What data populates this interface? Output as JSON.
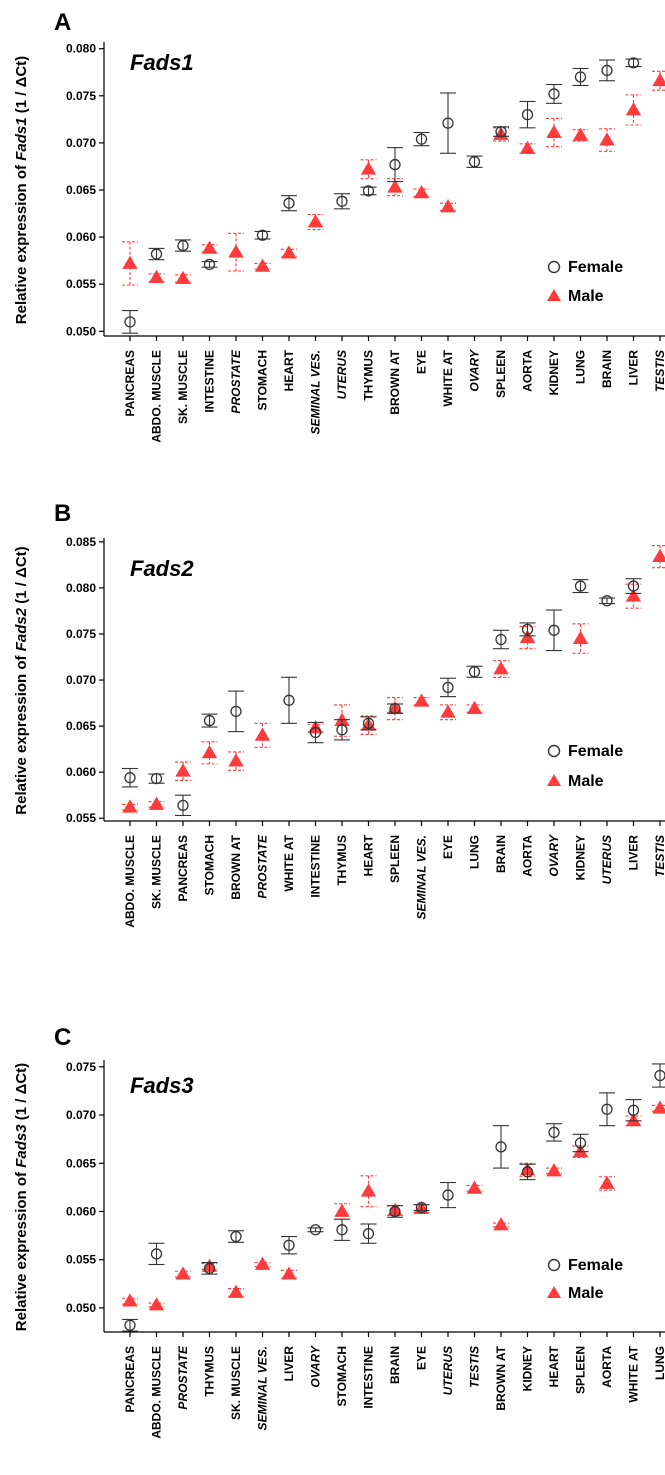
{
  "chart_data": [
    {
      "type": "scatter",
      "panel": "A",
      "title": "Fads1",
      "ylabel_prefix": "Relative expression of ",
      "ylabel_gene": "Fads1",
      "ylabel_suffix": " (1 / ΔCt)",
      "ylim": [
        0.0495,
        0.0805
      ],
      "yticks": [
        "0.050",
        "0.055",
        "0.060",
        "0.065",
        "0.070",
        "0.075",
        "0.080"
      ],
      "ytick_values": [
        0.05,
        0.055,
        0.06,
        0.065,
        0.07,
        0.075,
        0.08
      ],
      "legend": {
        "female": "Female",
        "male": "Male",
        "placement": "lower-right"
      },
      "categories": [
        {
          "label": "PANCREAS",
          "italic": false
        },
        {
          "label": "ABDO. MUSCLE",
          "italic": false
        },
        {
          "label": "SK. MUSCLE",
          "italic": false
        },
        {
          "label": "INTESTINE",
          "italic": false
        },
        {
          "label": "PROSTATE",
          "italic": true
        },
        {
          "label": "STOMACH",
          "italic": false
        },
        {
          "label": "HEART",
          "italic": false
        },
        {
          "label": "SEMINAL VES.",
          "italic": true
        },
        {
          "label": "UTERUS",
          "italic": true
        },
        {
          "label": "THYMUS",
          "italic": false
        },
        {
          "label": "BROWN AT",
          "italic": false
        },
        {
          "label": "EYE",
          "italic": false
        },
        {
          "label": "WHITE AT",
          "italic": false
        },
        {
          "label": "OVARY",
          "italic": true
        },
        {
          "label": "SPLEEN",
          "italic": false
        },
        {
          "label": "AORTA",
          "italic": false
        },
        {
          "label": "KIDNEY",
          "italic": false
        },
        {
          "label": "LUNG",
          "italic": false
        },
        {
          "label": "BRAIN",
          "italic": false
        },
        {
          "label": "LIVER",
          "italic": false
        },
        {
          "label": "TESTIS",
          "italic": true
        }
      ],
      "series": [
        {
          "name": "Female",
          "marker": "circle",
          "color": "#333333",
          "values": [
            0.051,
            0.0582,
            0.0591,
            0.0571,
            null,
            0.0602,
            0.0636,
            null,
            0.0638,
            0.0649,
            0.0677,
            0.0704,
            0.0721,
            0.068,
            0.0712,
            0.073,
            0.0752,
            0.077,
            0.0777,
            0.0785,
            null
          ],
          "errors": [
            0.0012,
            0.0006,
            0.0006,
            0.0003,
            null,
            0.0004,
            0.0008,
            null,
            0.0008,
            0.0004,
            0.0018,
            0.0007,
            0.0032,
            0.0006,
            0.0005,
            0.0014,
            0.001,
            0.0009,
            0.0011,
            0.0004,
            null
          ]
        },
        {
          "name": "Male",
          "marker": "triangle",
          "color": "#ff3b3b",
          "values": [
            0.0572,
            0.0557,
            0.0556,
            0.0588,
            0.0584,
            0.0569,
            0.0583,
            0.0616,
            null,
            0.0672,
            0.0653,
            0.0647,
            0.0632,
            null,
            0.0709,
            0.0694,
            0.0711,
            0.0708,
            0.0703,
            0.0735,
            0.0766
          ],
          "errors": [
            0.0023,
            0.0004,
            0.0004,
            0.0004,
            0.002,
            0.0003,
            0.0004,
            0.0008,
            null,
            0.001,
            0.0009,
            0.0004,
            0.0004,
            null,
            0.0007,
            0.0005,
            0.0015,
            0.0006,
            0.0012,
            0.0016,
            0.001
          ]
        }
      ]
    },
    {
      "type": "scatter",
      "panel": "B",
      "title": "Fads2",
      "ylabel_prefix": "Relative expression of ",
      "ylabel_gene": "Fads2",
      "ylabel_suffix": " (1 / ΔCt)",
      "ylim": [
        0.0547,
        0.0852
      ],
      "yticks": [
        "0.055",
        "0.060",
        "0.065",
        "0.070",
        "0.075",
        "0.080",
        "0.085"
      ],
      "ytick_values": [
        0.055,
        0.06,
        0.065,
        0.07,
        0.075,
        0.08,
        0.085
      ],
      "legend": {
        "female": "Female",
        "male": "Male",
        "placement": "lower-right"
      },
      "categories": [
        {
          "label": "ABDO. MUSCLE",
          "italic": false
        },
        {
          "label": "SK. MUSCLE",
          "italic": false
        },
        {
          "label": "PANCREAS",
          "italic": false
        },
        {
          "label": "STOMACH",
          "italic": false
        },
        {
          "label": "BROWN AT",
          "italic": false
        },
        {
          "label": "PROSTATE",
          "italic": true
        },
        {
          "label": "WHITE AT",
          "italic": false
        },
        {
          "label": "INTESTINE",
          "italic": false
        },
        {
          "label": "THYMUS",
          "italic": false
        },
        {
          "label": "HEART",
          "italic": false
        },
        {
          "label": "SPLEEN",
          "italic": false
        },
        {
          "label": "SEMINAL VES.",
          "italic": true
        },
        {
          "label": "EYE",
          "italic": false
        },
        {
          "label": "LUNG",
          "italic": false
        },
        {
          "label": "BRAIN",
          "italic": false
        },
        {
          "label": "AORTA",
          "italic": false
        },
        {
          "label": "OVARY",
          "italic": true
        },
        {
          "label": "KIDNEY",
          "italic": false
        },
        {
          "label": "UTERUS",
          "italic": true
        },
        {
          "label": "LIVER",
          "italic": false
        },
        {
          "label": "TESTIS",
          "italic": true
        }
      ],
      "series": [
        {
          "name": "Female",
          "marker": "circle",
          "color": "#333333",
          "values": [
            0.0594,
            0.0593,
            0.0564,
            0.0656,
            0.0666,
            null,
            0.0678,
            0.0643,
            0.0646,
            0.0653,
            0.0669,
            null,
            0.0692,
            0.0709,
            0.0744,
            0.0755,
            0.0754,
            0.0802,
            0.0786,
            0.0802,
            null
          ],
          "errors": [
            0.001,
            0.0005,
            0.0011,
            0.0007,
            0.0022,
            null,
            0.0025,
            0.0011,
            0.0011,
            0.0007,
            0.0005,
            null,
            0.001,
            0.0006,
            0.001,
            0.0007,
            0.0022,
            0.0007,
            0.0003,
            0.0008,
            null
          ]
        },
        {
          "name": "Male",
          "marker": "triangle",
          "color": "#ff3b3b",
          "values": [
            0.0562,
            0.0565,
            0.0601,
            0.0621,
            0.0612,
            0.064,
            null,
            0.0648,
            0.0656,
            0.0651,
            0.0669,
            0.0677,
            0.0665,
            0.0669,
            0.0712,
            0.0746,
            null,
            0.0745,
            null,
            0.0791,
            0.0834
          ],
          "errors": [
            0.0003,
            0.0003,
            0.001,
            0.0012,
            0.001,
            0.0013,
            null,
            0.0004,
            0.0017,
            0.001,
            0.0012,
            0.0004,
            0.0008,
            0.0004,
            0.0009,
            0.0012,
            null,
            0.0016,
            null,
            0.0013,
            0.0012
          ]
        }
      ]
    },
    {
      "type": "scatter",
      "panel": "C",
      "title": "Fads3",
      "ylabel_prefix": "Relative expression of ",
      "ylabel_gene": "Fads3",
      "ylabel_suffix": " (1 / ΔCt)",
      "ylim": [
        0.0475,
        0.0755
      ],
      "yticks": [
        "0.050",
        "0.055",
        "0.060",
        "0.065",
        "0.070",
        "0.075"
      ],
      "ytick_values": [
        0.05,
        0.055,
        0.06,
        0.065,
        0.07,
        0.075
      ],
      "legend": {
        "female": "Female",
        "male": "Male",
        "placement": "lower-right"
      },
      "categories": [
        {
          "label": "PANCREAS",
          "italic": false
        },
        {
          "label": "ABDO. MUSCLE",
          "italic": false
        },
        {
          "label": "PROSTATE",
          "italic": true
        },
        {
          "label": "THYMUS",
          "italic": false
        },
        {
          "label": "SK. MUSCLE",
          "italic": false
        },
        {
          "label": "SEMINAL VES.",
          "italic": true
        },
        {
          "label": "LIVER",
          "italic": false
        },
        {
          "label": "OVARY",
          "italic": true
        },
        {
          "label": "STOMACH",
          "italic": false
        },
        {
          "label": "INTESTINE",
          "italic": false
        },
        {
          "label": "BRAIN",
          "italic": false
        },
        {
          "label": "EYE",
          "italic": false
        },
        {
          "label": "UTERUS",
          "italic": true
        },
        {
          "label": "TESTIS",
          "italic": true
        },
        {
          "label": "BROWN AT",
          "italic": false
        },
        {
          "label": "KIDNEY",
          "italic": false
        },
        {
          "label": "HEART",
          "italic": false
        },
        {
          "label": "SPLEEN",
          "italic": false
        },
        {
          "label": "AORTA",
          "italic": false
        },
        {
          "label": "WHITE AT",
          "italic": false
        },
        {
          "label": "LUNG",
          "italic": false
        }
      ],
      "series": [
        {
          "name": "Female",
          "marker": "circle",
          "color": "#333333",
          "values": [
            0.0482,
            0.0556,
            null,
            0.0541,
            0.0574,
            null,
            0.0565,
            0.0581,
            0.0581,
            0.0577,
            0.06,
            0.0604,
            0.0617,
            null,
            0.0667,
            0.0641,
            0.0682,
            0.0671,
            0.0706,
            0.0705,
            0.0741
          ],
          "errors": [
            0.0006,
            0.0011,
            null,
            0.0006,
            0.0006,
            null,
            0.0009,
            0.0002,
            0.0011,
            0.001,
            0.0006,
            0.0003,
            0.0013,
            null,
            0.0022,
            0.0008,
            0.0009,
            0.0009,
            0.0017,
            0.0011,
            0.0012
          ]
        },
        {
          "name": "Male",
          "marker": "triangle",
          "color": "#ff3b3b",
          "values": [
            0.0507,
            0.0503,
            0.0535,
            0.0543,
            0.0516,
            0.0545,
            0.0535,
            null,
            0.06,
            0.0621,
            0.0601,
            0.0603,
            null,
            0.0624,
            0.0586,
            0.0643,
            0.0642,
            0.0662,
            0.0629,
            0.0694,
            0.0707
          ],
          "errors": [
            0.0003,
            0.0002,
            0.0003,
            0.0003,
            0.0004,
            0.0002,
            0.0004,
            null,
            0.0008,
            0.0016,
            0.0005,
            0.0004,
            null,
            0.0003,
            0.0002,
            0.0007,
            0.0003,
            0.0006,
            0.0007,
            0.0005,
            0.0003
          ]
        }
      ]
    }
  ],
  "colors": {
    "female": "#333333",
    "male": "#ff3b3b",
    "axis": "#000000"
  }
}
